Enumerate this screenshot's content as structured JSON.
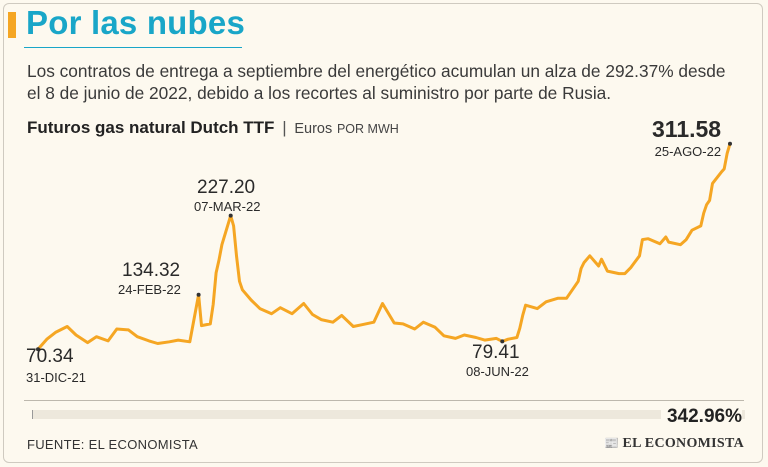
{
  "header": {
    "title": "Por las nubes",
    "subtitle": "Los contratos de entrega a septiembre del energético acumulan un alza de 292.37% desde el 8 de junio de 2022, debido a los recortes al suministro por parte de Rusia."
  },
  "chart_meta": {
    "title": "Futuros gas natural Dutch TTF",
    "separator": "|",
    "unit_main": "Euros",
    "unit_sub": "POR MWH"
  },
  "annotations": {
    "start": {
      "value": "70.34",
      "date": "31-DIC-21"
    },
    "feb": {
      "value": "134.32",
      "date": "24-FEB-22"
    },
    "peak_mar": {
      "value": "227.20",
      "date": "07-MAR-22"
    },
    "low_jun": {
      "value": "79.41",
      "date": "08-JUN-22"
    },
    "max": {
      "value": "311.58",
      "date": "25-AGO-22"
    }
  },
  "progress": {
    "label": "342.96%",
    "fraction": 1.0
  },
  "footer": {
    "source": "FUENTE: EL ECONOMISTA",
    "brand": "EL ECONOMISTA",
    "brand_icon": "newspaper-logo-glyph"
  },
  "colors": {
    "accent_title": "#19a6c8",
    "line": "#f5a623",
    "title_bar": "#f5a623"
  },
  "chart_data": {
    "type": "line",
    "title": "Futuros gas natural Dutch TTF",
    "ylabel": "Euros POR MWH",
    "ylim": [
      40,
      330
    ],
    "xlim": [
      "2021-12-31",
      "2022-08-25"
    ],
    "grid": false,
    "series": [
      {
        "name": "",
        "points": [
          [
            "2021-12-31",
            70.34
          ],
          [
            "2022-01-03",
            82.0
          ],
          [
            "2022-01-06",
            90.0
          ],
          [
            "2022-01-10",
            97.0
          ],
          [
            "2022-01-13",
            87.0
          ],
          [
            "2022-01-17",
            78.0
          ],
          [
            "2022-01-20",
            85.0
          ],
          [
            "2022-01-24",
            80.0
          ],
          [
            "2022-01-27",
            94.0
          ],
          [
            "2022-01-31",
            93.0
          ],
          [
            "2022-02-03",
            85.0
          ],
          [
            "2022-02-07",
            80.0
          ],
          [
            "2022-02-10",
            77.0
          ],
          [
            "2022-02-14",
            79.0
          ],
          [
            "2022-02-17",
            81.0
          ],
          [
            "2022-02-21",
            79.0
          ],
          [
            "2022-02-24",
            134.32
          ],
          [
            "2022-02-25",
            98.0
          ],
          [
            "2022-02-28",
            100.0
          ],
          [
            "2022-03-01",
            123.0
          ],
          [
            "2022-03-02",
            160.0
          ],
          [
            "2022-03-03",
            175.0
          ],
          [
            "2022-03-04",
            193.0
          ],
          [
            "2022-03-07",
            227.2
          ],
          [
            "2022-03-08",
            215.0
          ],
          [
            "2022-03-09",
            180.0
          ],
          [
            "2022-03-10",
            150.0
          ],
          [
            "2022-03-11",
            140.0
          ],
          [
            "2022-03-14",
            128.0
          ],
          [
            "2022-03-17",
            118.0
          ],
          [
            "2022-03-21",
            112.0
          ],
          [
            "2022-03-24",
            119.0
          ],
          [
            "2022-03-28",
            112.0
          ],
          [
            "2022-04-01",
            124.0
          ],
          [
            "2022-04-04",
            111.0
          ],
          [
            "2022-04-07",
            105.0
          ],
          [
            "2022-04-11",
            102.0
          ],
          [
            "2022-04-14",
            110.0
          ],
          [
            "2022-04-18",
            97.0
          ],
          [
            "2022-04-21",
            99.0
          ],
          [
            "2022-04-25",
            102.0
          ],
          [
            "2022-04-28",
            124.0
          ],
          [
            "2022-05-02",
            101.0
          ],
          [
            "2022-05-05",
            100.0
          ],
          [
            "2022-05-09",
            94.0
          ],
          [
            "2022-05-12",
            102.0
          ],
          [
            "2022-05-16",
            96.0
          ],
          [
            "2022-05-19",
            86.0
          ],
          [
            "2022-05-23",
            83.0
          ],
          [
            "2022-05-26",
            87.0
          ],
          [
            "2022-05-30",
            84.0
          ],
          [
            "2022-06-02",
            81.0
          ],
          [
            "2022-06-06",
            83.0
          ],
          [
            "2022-06-08",
            79.41
          ],
          [
            "2022-06-10",
            82.0
          ],
          [
            "2022-06-13",
            84.0
          ],
          [
            "2022-06-14",
            95.0
          ],
          [
            "2022-06-15",
            110.0
          ],
          [
            "2022-06-16",
            122.0
          ],
          [
            "2022-06-20",
            118.0
          ],
          [
            "2022-06-23",
            126.0
          ],
          [
            "2022-06-27",
            130.0
          ],
          [
            "2022-06-30",
            130.0
          ],
          [
            "2022-07-04",
            150.0
          ],
          [
            "2022-07-05",
            165.0
          ],
          [
            "2022-07-06",
            172.0
          ],
          [
            "2022-07-08",
            180.0
          ],
          [
            "2022-07-11",
            168.0
          ],
          [
            "2022-07-12",
            176.0
          ],
          [
            "2022-07-14",
            162.0
          ],
          [
            "2022-07-18",
            159.0
          ],
          [
            "2022-07-20",
            159.0
          ],
          [
            "2022-07-22",
            166.0
          ],
          [
            "2022-07-25",
            180.0
          ],
          [
            "2022-07-26",
            199.0
          ],
          [
            "2022-07-28",
            200.0
          ],
          [
            "2022-08-01",
            194.0
          ],
          [
            "2022-08-03",
            202.0
          ],
          [
            "2022-08-04",
            196.0
          ],
          [
            "2022-08-08",
            193.0
          ],
          [
            "2022-08-10",
            199.0
          ],
          [
            "2022-08-12",
            210.0
          ],
          [
            "2022-08-15",
            215.0
          ],
          [
            "2022-08-16",
            230.0
          ],
          [
            "2022-08-17",
            240.0
          ],
          [
            "2022-08-18",
            245.0
          ],
          [
            "2022-08-19",
            265.0
          ],
          [
            "2022-08-22",
            278.0
          ],
          [
            "2022-08-23",
            282.0
          ],
          [
            "2022-08-24",
            300.0
          ],
          [
            "2022-08-25",
            311.58
          ]
        ]
      }
    ]
  }
}
